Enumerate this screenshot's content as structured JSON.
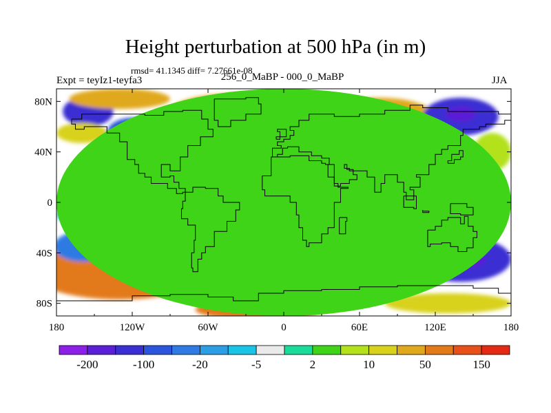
{
  "chart_data": {
    "type": "heatmap",
    "title": "Height perturbation at 500 hPa (in m)",
    "stats_text": "rmsd= 41.1345 diff= 7.27661e-08",
    "left_label": "Expt = teyIz1-teyfa3",
    "center_label": "256_0_MaBP - 000_0_MaBP",
    "right_label": "JJA",
    "x_ticks": [
      {
        "value": -180,
        "label": "180"
      },
      {
        "value": -120,
        "label": "120W"
      },
      {
        "value": -60,
        "label": "60W"
      },
      {
        "value": 0,
        "label": "0"
      },
      {
        "value": 60,
        "label": "60E"
      },
      {
        "value": 120,
        "label": "120E"
      },
      {
        "value": 180,
        "label": "180"
      }
    ],
    "y_ticks": [
      {
        "value": 80,
        "label": "80N"
      },
      {
        "value": 40,
        "label": "40N"
      },
      {
        "value": 0,
        "label": "0"
      },
      {
        "value": -40,
        "label": "40S"
      },
      {
        "value": -80,
        "label": "80S"
      }
    ],
    "xlim": [
      -180,
      180
    ],
    "ylim": [
      -90,
      90
    ],
    "colorbar": {
      "colors": [
        "#8c20e8",
        "#5a1fd6",
        "#3a2fd2",
        "#2a55dc",
        "#2f7ae3",
        "#2b9ee6",
        "#19c4e6",
        "#eaeaea",
        "#19dc9a",
        "#40d419",
        "#b3e11a",
        "#d8d21c",
        "#e0a81d",
        "#e27a1a",
        "#e8501a",
        "#e42a14"
      ],
      "labels": [
        {
          "boundary": 1,
          "text": "-200"
        },
        {
          "boundary": 3,
          "text": "-100"
        },
        {
          "boundary": 5,
          "text": "-20"
        },
        {
          "boundary": 7,
          "text": "-5"
        },
        {
          "boundary": 9,
          "text": "2"
        },
        {
          "boundary": 11,
          "text": "10"
        },
        {
          "boundary": 13,
          "text": "50"
        },
        {
          "boundary": 15,
          "text": "150"
        }
      ]
    },
    "field_features": [
      {
        "lon": 0,
        "lat": 0,
        "rx": 180,
        "ry": 90,
        "level": 9
      },
      {
        "lon": -110,
        "lat": 0,
        "rx": 55,
        "ry": 28,
        "level": 5
      },
      {
        "lon": -140,
        "lat": -10,
        "rx": 40,
        "ry": 10,
        "level": 6
      },
      {
        "lon": -160,
        "lat": 10,
        "rx": 20,
        "ry": 8,
        "level": 7
      },
      {
        "lon": -140,
        "lat": 15,
        "rx": 22,
        "ry": 6,
        "level": 7
      },
      {
        "lon": -110,
        "lat": -2,
        "rx": 10,
        "ry": 4,
        "level": 7
      },
      {
        "lon": -70,
        "lat": 30,
        "rx": 30,
        "ry": 15,
        "level": 4
      },
      {
        "lon": -50,
        "lat": -5,
        "rx": 40,
        "ry": 25,
        "level": 5
      },
      {
        "lon": -20,
        "lat": 10,
        "rx": 30,
        "ry": 15,
        "level": 5
      },
      {
        "lon": -155,
        "lat": 72,
        "rx": 20,
        "ry": 12,
        "level": 2
      },
      {
        "lon": -120,
        "lat": 55,
        "rx": 20,
        "ry": 12,
        "level": 3
      },
      {
        "lon": -75,
        "lat": 55,
        "rx": 28,
        "ry": 10,
        "level": 12
      },
      {
        "lon": -40,
        "lat": 72,
        "rx": 50,
        "ry": 14,
        "level": 12
      },
      {
        "lon": -30,
        "lat": 80,
        "rx": 30,
        "ry": 6,
        "level": 13
      },
      {
        "lon": -160,
        "lat": 55,
        "rx": 20,
        "ry": 8,
        "level": 11
      },
      {
        "lon": -130,
        "lat": 82,
        "rx": 40,
        "ry": 8,
        "level": 12
      },
      {
        "lon": 40,
        "lat": 40,
        "rx": 35,
        "ry": 14,
        "level": 3
      },
      {
        "lon": 50,
        "lat": 48,
        "rx": 20,
        "ry": 7,
        "level": 2
      },
      {
        "lon": 25,
        "lat": 42,
        "rx": 9,
        "ry": 6,
        "level": 7
      },
      {
        "lon": 60,
        "lat": 25,
        "rx": 30,
        "ry": 14,
        "level": 10
      },
      {
        "lon": 110,
        "lat": 35,
        "rx": 40,
        "ry": 15,
        "level": 12
      },
      {
        "lon": 75,
        "lat": 68,
        "rx": 45,
        "ry": 15,
        "level": 12
      },
      {
        "lon": 70,
        "lat": 66,
        "rx": 25,
        "ry": 9,
        "level": 14
      },
      {
        "lon": 140,
        "lat": 68,
        "rx": 30,
        "ry": 15,
        "level": 2
      },
      {
        "lon": 140,
        "lat": 70,
        "rx": 12,
        "ry": 6,
        "level": 1
      },
      {
        "lon": 125,
        "lat": -10,
        "rx": 25,
        "ry": 12,
        "level": 11
      },
      {
        "lon": 112,
        "lat": -20,
        "rx": 18,
        "ry": 6,
        "level": 7
      },
      {
        "lon": -30,
        "lat": -30,
        "rx": 30,
        "ry": 10,
        "level": 12
      },
      {
        "lon": -130,
        "lat": -55,
        "rx": 70,
        "ry": 22,
        "level": 13
      },
      {
        "lon": -160,
        "lat": -35,
        "rx": 22,
        "ry": 12,
        "level": 4
      },
      {
        "lon": -110,
        "lat": -33,
        "rx": 40,
        "ry": 15,
        "level": 4
      },
      {
        "lon": -100,
        "lat": -30,
        "rx": 15,
        "ry": 6,
        "level": 2
      },
      {
        "lon": -20,
        "lat": -85,
        "rx": 50,
        "ry": 8,
        "level": 13
      },
      {
        "lon": 70,
        "lat": -45,
        "rx": 70,
        "ry": 25,
        "level": 3
      },
      {
        "lon": 60,
        "lat": -55,
        "rx": 30,
        "ry": 10,
        "level": 2
      },
      {
        "lon": 140,
        "lat": -45,
        "rx": 40,
        "ry": 18,
        "level": 2
      },
      {
        "lon": 145,
        "lat": -45,
        "rx": 15,
        "ry": 7,
        "level": 1
      },
      {
        "lon": 80,
        "lat": -38,
        "rx": 15,
        "ry": 7,
        "level": 12
      },
      {
        "lon": 130,
        "lat": -80,
        "rx": 50,
        "ry": 8,
        "level": 11
      },
      {
        "lon": 30,
        "lat": -80,
        "rx": 30,
        "ry": 6,
        "level": 11
      },
      {
        "lon": 110,
        "lat": -5,
        "rx": 15,
        "ry": 8,
        "level": 11
      },
      {
        "lon": 165,
        "lat": 40,
        "rx": 15,
        "ry": 15,
        "level": 10
      },
      {
        "lon": 0,
        "lat": 60,
        "rx": 30,
        "ry": 15,
        "level": 10
      }
    ],
    "land_outlines": [
      [
        [
          -168,
          66
        ],
        [
          -160,
          70
        ],
        [
          -140,
          70
        ],
        [
          -125,
          70
        ],
        [
          -110,
          69
        ],
        [
          -95,
          72
        ],
        [
          -80,
          73
        ],
        [
          -65,
          66
        ],
        [
          -60,
          58
        ],
        [
          -56,
          52
        ],
        [
          -66,
          45
        ],
        [
          -76,
          36
        ],
        [
          -82,
          27
        ],
        [
          -82,
          25
        ],
        [
          -90,
          30
        ],
        [
          -97,
          27
        ],
        [
          -97,
          20
        ],
        [
          -90,
          21
        ],
        [
          -87,
          16
        ],
        [
          -83,
          11
        ],
        [
          -78,
          8
        ],
        [
          -80,
          7
        ],
        [
          -85,
          11
        ],
        [
          -92,
          15
        ],
        [
          -105,
          20
        ],
        [
          -110,
          23
        ],
        [
          -115,
          30
        ],
        [
          -118,
          34
        ],
        [
          -124,
          40
        ],
        [
          -124,
          48
        ],
        [
          -130,
          55
        ],
        [
          -140,
          60
        ],
        [
          -150,
          60
        ],
        [
          -158,
          58
        ],
        [
          -165,
          62
        ],
        [
          -168,
          66
        ]
      ],
      [
        [
          -55,
          82
        ],
        [
          -30,
          83
        ],
        [
          -20,
          78
        ],
        [
          -18,
          70
        ],
        [
          -30,
          65
        ],
        [
          -42,
          60
        ],
        [
          -52,
          65
        ],
        [
          -55,
          75
        ],
        [
          -55,
          82
        ]
      ],
      [
        [
          -78,
          8
        ],
        [
          -72,
          12
        ],
        [
          -62,
          11
        ],
        [
          -52,
          5
        ],
        [
          -48,
          0
        ],
        [
          -35,
          -6
        ],
        [
          -38,
          -15
        ],
        [
          -45,
          -23
        ],
        [
          -55,
          -35
        ],
        [
          -62,
          -40
        ],
        [
          -65,
          -45
        ],
        [
          -68,
          -55
        ],
        [
          -72,
          -52
        ],
        [
          -73,
          -40
        ],
        [
          -71,
          -30
        ],
        [
          -70,
          -18
        ],
        [
          -76,
          -13
        ],
        [
          -81,
          -5
        ],
        [
          -80,
          1
        ],
        [
          -78,
          8
        ]
      ],
      [
        [
          -10,
          36
        ],
        [
          -5,
          36
        ],
        [
          5,
          37
        ],
        [
          10,
          37
        ],
        [
          20,
          33
        ],
        [
          30,
          31
        ],
        [
          33,
          30
        ],
        [
          40,
          15
        ],
        [
          43,
          12
        ],
        [
          51,
          11
        ],
        [
          45,
          0
        ],
        [
          40,
          -10
        ],
        [
          40,
          -20
        ],
        [
          35,
          -25
        ],
        [
          30,
          -32
        ],
        [
          20,
          -35
        ],
        [
          18,
          -30
        ],
        [
          15,
          -20
        ],
        [
          12,
          -10
        ],
        [
          10,
          0
        ],
        [
          5,
          5
        ],
        [
          -8,
          5
        ],
        [
          -15,
          10
        ],
        [
          -17,
          15
        ],
        [
          -17,
          21
        ],
        [
          -10,
          30
        ],
        [
          -10,
          36
        ]
      ],
      [
        [
          -10,
          36
        ],
        [
          -9,
          43
        ],
        [
          -2,
          45
        ],
        [
          -5,
          48
        ],
        [
          0,
          50
        ],
        [
          5,
          53
        ],
        [
          8,
          57
        ],
        [
          5,
          60
        ],
        [
          12,
          65
        ],
        [
          20,
          70
        ],
        [
          30,
          70
        ],
        [
          40,
          68
        ],
        [
          60,
          70
        ],
        [
          80,
          73
        ],
        [
          100,
          77
        ],
        [
          110,
          75
        ],
        [
          130,
          72
        ],
        [
          150,
          72
        ],
        [
          170,
          70
        ],
        [
          180,
          68
        ],
        [
          180,
          65
        ],
        [
          175,
          62
        ],
        [
          160,
          60
        ],
        [
          155,
          58
        ],
        [
          142,
          53
        ],
        [
          140,
          45
        ],
        [
          130,
          42
        ],
        [
          125,
          38
        ],
        [
          120,
          30
        ],
        [
          115,
          22
        ],
        [
          105,
          20
        ],
        [
          108,
          12
        ],
        [
          100,
          10
        ],
        [
          103,
          2
        ],
        [
          97,
          8
        ],
        [
          95,
          16
        ],
        [
          90,
          22
        ],
        [
          80,
          15
        ],
        [
          77,
          8
        ],
        [
          72,
          20
        ],
        [
          66,
          25
        ],
        [
          57,
          25
        ],
        [
          52,
          27
        ],
        [
          48,
          30
        ],
        [
          50,
          26
        ],
        [
          55,
          22
        ],
        [
          58,
          18
        ],
        [
          52,
          15
        ],
        [
          45,
          13
        ],
        [
          40,
          20
        ],
        [
          35,
          30
        ],
        [
          36,
          35
        ],
        [
          30,
          37
        ],
        [
          25,
          37
        ],
        [
          22,
          40
        ],
        [
          18,
          40
        ],
        [
          12,
          44
        ],
        [
          8,
          44
        ],
        [
          3,
          43
        ],
        [
          -1,
          38
        ],
        [
          -5,
          36
        ],
        [
          -10,
          36
        ]
      ],
      [
        [
          114,
          -22
        ],
        [
          120,
          -19
        ],
        [
          125,
          -14
        ],
        [
          130,
          -12
        ],
        [
          136,
          -12
        ],
        [
          140,
          -17
        ],
        [
          143,
          -11
        ],
        [
          146,
          -19
        ],
        [
          150,
          -23
        ],
        [
          153,
          -28
        ],
        [
          150,
          -36
        ],
        [
          145,
          -39
        ],
        [
          138,
          -35
        ],
        [
          132,
          -32
        ],
        [
          125,
          -33
        ],
        [
          116,
          -35
        ],
        [
          114,
          -28
        ],
        [
          114,
          -22
        ]
      ],
      [
        [
          -180,
          -78
        ],
        [
          -150,
          -78
        ],
        [
          -120,
          -74
        ],
        [
          -90,
          -73
        ],
        [
          -60,
          -75
        ],
        [
          -40,
          -78
        ],
        [
          -20,
          -72
        ],
        [
          0,
          -70
        ],
        [
          30,
          -69
        ],
        [
          60,
          -67
        ],
        [
          90,
          -66
        ],
        [
          120,
          -66
        ],
        [
          150,
          -68
        ],
        [
          170,
          -72
        ],
        [
          180,
          -78
        ]
      ],
      [
        [
          -6,
          50
        ],
        [
          -3,
          56
        ],
        [
          -5,
          58
        ],
        [
          -2,
          58
        ],
        [
          2,
          52
        ],
        [
          -6,
          50
        ]
      ],
      [
        [
          130,
          31
        ],
        [
          135,
          34
        ],
        [
          140,
          36
        ],
        [
          142,
          41
        ],
        [
          139,
          38
        ],
        [
          133,
          33
        ],
        [
          130,
          31
        ]
      ],
      [
        [
          44,
          -12
        ],
        [
          50,
          -15
        ],
        [
          49,
          -25
        ],
        [
          44,
          -24
        ],
        [
          44,
          -12
        ]
      ],
      [
        [
          95,
          5
        ],
        [
          105,
          -5
        ],
        [
          103,
          -4
        ],
        [
          95,
          5
        ]
      ],
      [
        [
          110,
          -7
        ],
        [
          115,
          -8
        ],
        [
          110,
          -6
        ],
        [
          110,
          -7
        ]
      ],
      [
        [
          132,
          -1
        ],
        [
          145,
          -4
        ],
        [
          150,
          -10
        ],
        [
          140,
          -9
        ],
        [
          132,
          -1
        ]
      ]
    ]
  }
}
